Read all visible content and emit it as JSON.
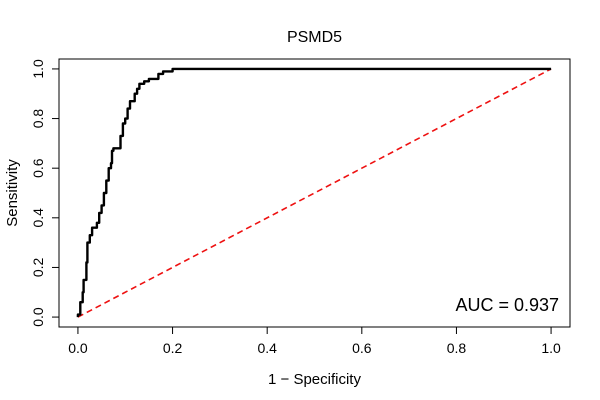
{
  "chart_data": {
    "type": "line",
    "title": "PSMD5",
    "xlabel": "1 − Specificity",
    "ylabel": "Sensitivity",
    "xlim": [
      -0.04,
      1.04
    ],
    "ylim": [
      -0.04,
      1.04
    ],
    "x_ticks": [
      0.0,
      0.2,
      0.4,
      0.6,
      0.8,
      1.0
    ],
    "y_ticks": [
      0.0,
      0.2,
      0.4,
      0.6,
      0.8,
      1.0
    ],
    "x_tick_labels": [
      "0.0",
      "0.2",
      "0.4",
      "0.6",
      "0.8",
      "1.0"
    ],
    "y_tick_labels": [
      "0.0",
      "0.2",
      "0.4",
      "0.6",
      "0.8",
      "1.0"
    ],
    "annotation": "AUC = 0.937",
    "series": [
      {
        "name": "ROC",
        "color": "#000000",
        "style": "solid",
        "points": [
          [
            0.0,
            0.0
          ],
          [
            0.005,
            0.01
          ],
          [
            0.01,
            0.06
          ],
          [
            0.012,
            0.1
          ],
          [
            0.018,
            0.15
          ],
          [
            0.02,
            0.22
          ],
          [
            0.025,
            0.3
          ],
          [
            0.03,
            0.33
          ],
          [
            0.04,
            0.36
          ],
          [
            0.045,
            0.38
          ],
          [
            0.05,
            0.42
          ],
          [
            0.055,
            0.45
          ],
          [
            0.06,
            0.5
          ],
          [
            0.065,
            0.55
          ],
          [
            0.07,
            0.6
          ],
          [
            0.072,
            0.62
          ],
          [
            0.075,
            0.67
          ],
          [
            0.09,
            0.68
          ],
          [
            0.095,
            0.73
          ],
          [
            0.1,
            0.78
          ],
          [
            0.105,
            0.8
          ],
          [
            0.11,
            0.84
          ],
          [
            0.12,
            0.87
          ],
          [
            0.125,
            0.9
          ],
          [
            0.13,
            0.92
          ],
          [
            0.14,
            0.94
          ],
          [
            0.15,
            0.95
          ],
          [
            0.17,
            0.96
          ],
          [
            0.18,
            0.98
          ],
          [
            0.2,
            0.99
          ],
          [
            0.21,
            1.0
          ],
          [
            1.0,
            1.0
          ]
        ]
      },
      {
        "name": "reference",
        "color": "#ee1111",
        "style": "dashed",
        "points": [
          [
            0.0,
            0.0
          ],
          [
            1.0,
            1.0
          ]
        ]
      }
    ]
  }
}
